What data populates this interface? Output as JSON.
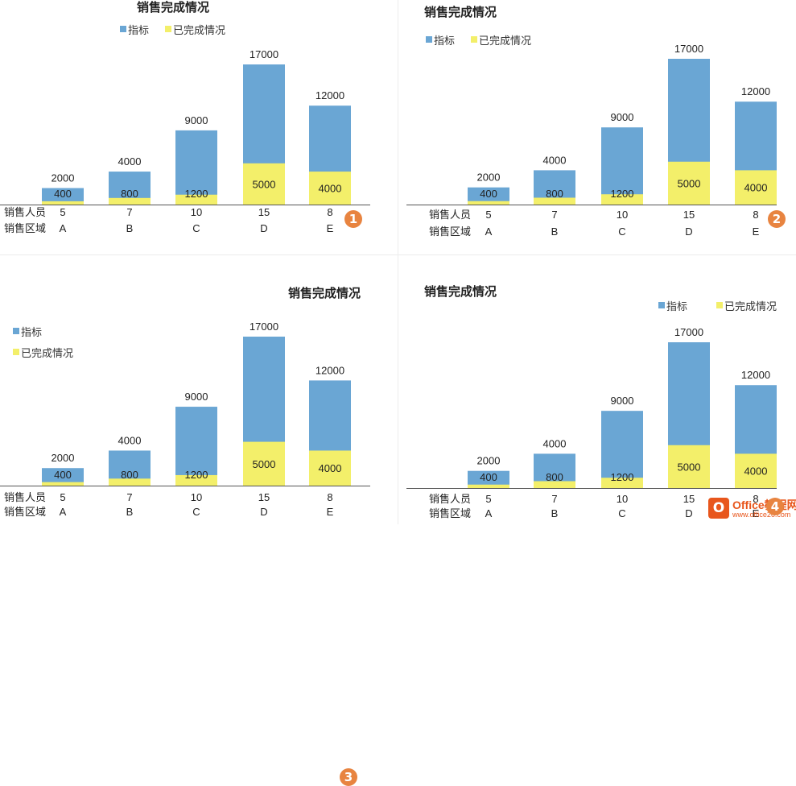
{
  "colors": {
    "target": "#6aa6d4",
    "done": "#f3ef6a",
    "badge": "#e88440"
  },
  "chart_data": [
    {
      "type": "bar",
      "stacked": false,
      "overlap": true,
      "title": "销售完成情况",
      "title_position": "top-center",
      "legend": [
        "指标",
        "已完成情况"
      ],
      "legend_position": "top-center",
      "categories": [
        "A",
        "B",
        "C",
        "D",
        "E"
      ],
      "rows": [
        {
          "label": "销售人员",
          "values": [
            "5",
            "7",
            "10",
            "15",
            "8"
          ]
        },
        {
          "label": "销售区域",
          "values": [
            "A",
            "B",
            "C",
            "D",
            "E"
          ]
        }
      ],
      "series": [
        {
          "name": "指标",
          "values": [
            2000,
            4000,
            9000,
            17000,
            12000
          ]
        },
        {
          "name": "已完成情况",
          "values": [
            400,
            800,
            1200,
            5000,
            4000
          ]
        }
      ],
      "ylim": [
        0,
        17000
      ],
      "grid": false,
      "badge": "1"
    },
    {
      "type": "bar",
      "stacked": false,
      "overlap": true,
      "title": "销售完成情况",
      "title_position": "top-left",
      "legend": [
        "指标",
        "已完成情况"
      ],
      "legend_position": "top-left",
      "categories": [
        "A",
        "B",
        "C",
        "D",
        "E"
      ],
      "rows": [
        {
          "label": "销售人员",
          "values": [
            "5",
            "7",
            "10",
            "15",
            "8"
          ]
        },
        {
          "label": "销售区域",
          "values": [
            "A",
            "B",
            "C",
            "D",
            "E"
          ]
        }
      ],
      "series": [
        {
          "name": "指标",
          "values": [
            2000,
            4000,
            9000,
            17000,
            12000
          ]
        },
        {
          "name": "已完成情况",
          "values": [
            400,
            800,
            1200,
            5000,
            4000
          ]
        }
      ],
      "ylim": [
        0,
        17000
      ],
      "grid": false,
      "badge": "2"
    },
    {
      "type": "bar",
      "stacked": false,
      "overlap": true,
      "title": "销售完成情况",
      "title_position": "top-right",
      "legend": [
        "指标",
        "已完成情况"
      ],
      "legend_position": "left",
      "categories": [
        "A",
        "B",
        "C",
        "D",
        "E"
      ],
      "rows": [
        {
          "label": "销售人员",
          "values": [
            "5",
            "7",
            "10",
            "15",
            "8"
          ]
        },
        {
          "label": "销售区域",
          "values": [
            "A",
            "B",
            "C",
            "D",
            "E"
          ]
        }
      ],
      "series": [
        {
          "name": "指标",
          "values": [
            2000,
            4000,
            9000,
            17000,
            12000
          ]
        },
        {
          "name": "已完成情况",
          "values": [
            400,
            800,
            1200,
            5000,
            4000
          ]
        }
      ],
      "ylim": [
        0,
        17000
      ],
      "grid": false,
      "badge": "3"
    },
    {
      "type": "bar",
      "stacked": false,
      "overlap": true,
      "title": "销售完成情况",
      "title_position": "top-left",
      "legend": [
        "指标",
        "已完成情况"
      ],
      "legend_position": "top-right",
      "categories": [
        "A",
        "B",
        "C",
        "D",
        "E"
      ],
      "rows": [
        {
          "label": "销售人员",
          "values": [
            "5",
            "7",
            "10",
            "15",
            "8"
          ]
        },
        {
          "label": "销售区域",
          "values": [
            "A",
            "B",
            "C",
            "D",
            "E"
          ]
        }
      ],
      "series": [
        {
          "name": "指标",
          "values": [
            2000,
            4000,
            9000,
            17000,
            12000
          ]
        },
        {
          "name": "已完成情况",
          "values": [
            400,
            800,
            1200,
            5000,
            4000
          ]
        }
      ],
      "ylim": [
        0,
        17000
      ],
      "grid": false,
      "badge": "4"
    }
  ],
  "watermark": {
    "brand": "Office教程网",
    "url": "www.office26.com",
    "icon_letter": "O"
  }
}
